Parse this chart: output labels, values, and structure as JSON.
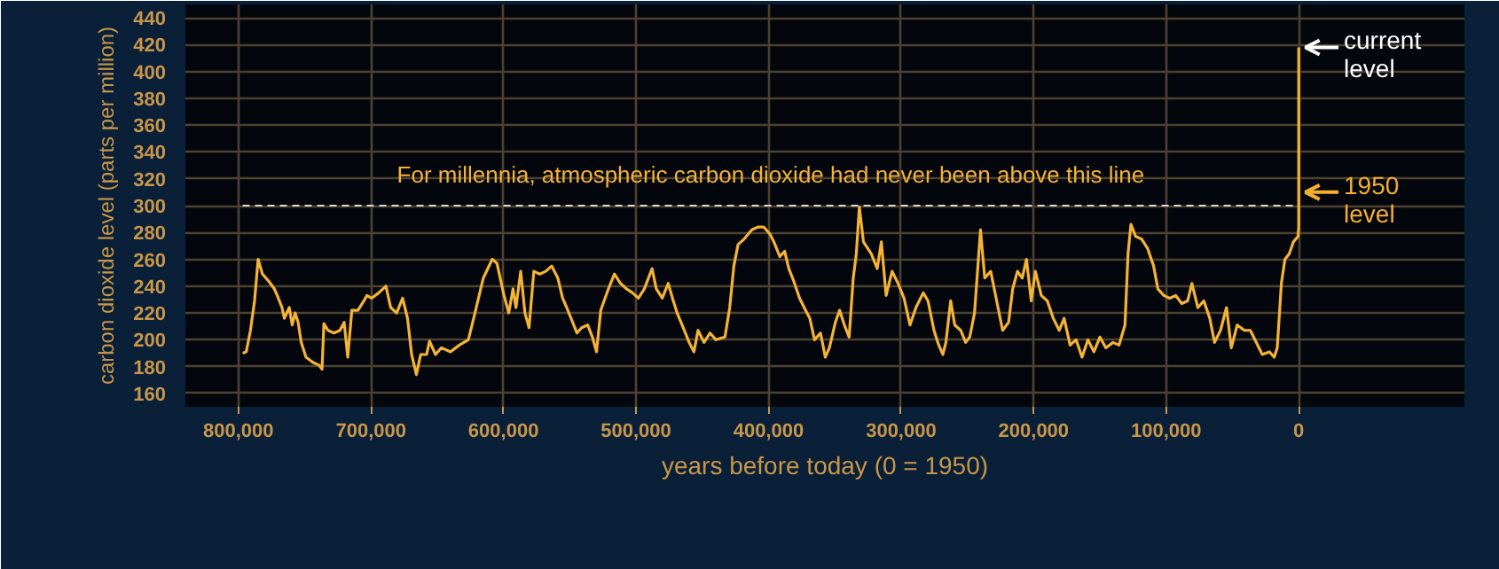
{
  "chart_data": {
    "type": "line",
    "xlabel": "years before today (0 = 1950)",
    "ylabel": "carbon dioxide level (parts per million)",
    "xlim": [
      840000,
      -125000
    ],
    "ylim": [
      150,
      450
    ],
    "xticks": [
      {
        "value": 800000,
        "label": "800,000"
      },
      {
        "value": 700000,
        "label": "700,000"
      },
      {
        "value": 600000,
        "label": "600,000"
      },
      {
        "value": 500000,
        "label": "500,000"
      },
      {
        "value": 400000,
        "label": "400,000"
      },
      {
        "value": 300000,
        "label": "300,000"
      },
      {
        "value": 200000,
        "label": "200,000"
      },
      {
        "value": 100000,
        "label": "100,000"
      },
      0
    ],
    "yticks": [
      160,
      180,
      200,
      220,
      240,
      260,
      280,
      300,
      320,
      340,
      360,
      380,
      400,
      420,
      440
    ],
    "grid": true,
    "marker": "none",
    "line_style": "solid",
    "ref_lines": [
      {
        "axis": "y",
        "value": 300,
        "label": "For millennia, atmospheric carbon dioxide had never been above this line",
        "color": "#d8d8d8",
        "line_style": "dashed"
      }
    ],
    "annotations": [
      {
        "text": "current level",
        "x": 0,
        "y": 418
      },
      {
        "text": "1950 level",
        "x": 0,
        "y": 310
      }
    ],
    "series": [
      {
        "color": "#f5b335",
        "x": [
          796800,
          794100,
          790900,
          787800,
          785100,
          781900,
          777400,
          772900,
          770700,
          767100,
          765300,
          761600,
          759400,
          757200,
          754900,
          752600,
          749000,
          743600,
          739100,
          736900,
          735500,
          732400,
          727900,
          723400,
          720200,
          717500,
          714400,
          709800,
          705300,
          703100,
          699500,
          694100,
          688700,
          685100,
          680600,
          676100,
          672400,
          669300,
          665700,
          662500,
          658000,
          655800,
          651300,
          646800,
          640000,
          633300,
          626500,
          622000,
          615200,
          608500,
          604900,
          599600,
          596000,
          592800,
          590600,
          587000,
          583800,
          580700,
          577100,
          572600,
          568100,
          563600,
          559000,
          555400,
          552300,
          547800,
          544600,
          541000,
          536500,
          532900,
          529800,
          526600,
          520800,
          516300,
          511700,
          507200,
          502700,
          498200,
          493700,
          487900,
          484700,
          480200,
          475700,
          472500,
          469000,
          464400,
          459900,
          456300,
          453200,
          448700,
          444200,
          439700,
          432900,
          429300,
          426200,
          423000,
          418500,
          412600,
          408100,
          403600,
          399100,
          396000,
          391500,
          387900,
          384700,
          381100,
          376600,
          372100,
          368900,
          365300,
          360800,
          357200,
          354100,
          349600,
          346400,
          342800,
          339200,
          336100,
          333800,
          331500,
          328400,
          322500,
          318000,
          314900,
          311300,
          306800,
          302300,
          297800,
          293300,
          288800,
          283300,
          279700,
          275200,
          271600,
          268500,
          266200,
          262600,
          259500,
          255000,
          251300,
          248200,
          244600,
          240100,
          236900,
          232400,
          227900,
          223400,
          218900,
          215800,
          212200,
          208600,
          205400,
          201800,
          198700,
          194200,
          189700,
          185200,
          180700,
          177000,
          172500,
          168000,
          163500,
          159000,
          154500,
          150000,
          145500,
          140100,
          135600,
          131100,
          128800,
          126600,
          123000,
          118500,
          114000,
          109500,
          106300,
          101800,
          97300,
          92800,
          88300,
          83800,
          80600,
          76100,
          71600,
          67100,
          63500,
          59000,
          54500,
          50900,
          46400,
          41000,
          36500,
          32000,
          27500,
          22100,
          18500,
          16200,
          13100,
          10400,
          7200,
          4000,
          500,
          0,
          0
        ],
        "values": [
          190,
          191,
          207,
          229,
          260,
          249,
          244,
          238,
          233,
          224,
          216,
          224,
          211,
          220,
          213,
          198,
          187,
          183,
          181,
          178,
          212,
          207,
          205,
          207,
          213,
          187,
          222,
          222,
          229,
          233,
          231,
          235,
          240,
          224,
          220,
          231,
          216,
          189,
          174,
          189,
          189,
          199,
          189,
          194,
          191,
          196,
          200,
          218,
          246,
          260,
          257,
          233,
          220,
          238,
          224,
          251,
          220,
          209,
          251,
          249,
          251,
          255,
          246,
          231,
          224,
          213,
          205,
          209,
          211,
          202,
          191,
          222,
          238,
          249,
          242,
          238,
          235,
          231,
          238,
          253,
          238,
          231,
          242,
          231,
          220,
          209,
          198,
          191,
          207,
          198,
          205,
          200,
          202,
          224,
          255,
          271,
          275,
          282,
          284,
          284,
          279,
          273,
          262,
          266,
          253,
          244,
          231,
          222,
          216,
          200,
          205,
          187,
          194,
          213,
          222,
          211,
          202,
          246,
          264,
          299,
          273,
          264,
          253,
          273,
          233,
          251,
          242,
          231,
          211,
          224,
          235,
          229,
          207,
          196,
          189,
          198,
          229,
          211,
          207,
          198,
          202,
          220,
          282,
          246,
          251,
          229,
          207,
          213,
          238,
          251,
          246,
          260,
          229,
          251,
          233,
          229,
          216,
          207,
          216,
          196,
          200,
          187,
          200,
          191,
          202,
          194,
          198,
          196,
          211,
          264,
          286,
          277,
          275,
          268,
          255,
          238,
          233,
          231,
          233,
          227,
          229,
          242,
          224,
          229,
          216,
          198,
          207,
          224,
          194,
          211,
          207,
          207,
          198,
          189,
          191,
          187,
          194,
          242,
          260,
          264,
          273,
          277,
          284,
          418
        ]
      }
    ]
  }
}
